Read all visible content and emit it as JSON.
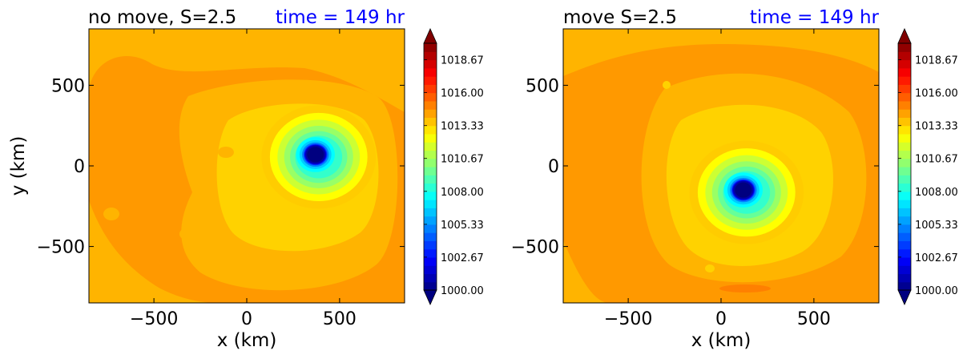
{
  "chart_data": [
    {
      "type": "heatmap",
      "title": "no move, S=2.5",
      "time_label": "time = 149 hr",
      "xlabel": "x (km)",
      "ylabel": "y (km)",
      "xlim": [
        -850,
        850
      ],
      "ylim": [
        -850,
        850
      ],
      "xticks": [
        -500,
        0,
        500
      ],
      "yticks": [
        -500,
        0,
        500
      ],
      "xtick_labels": [
        "−500",
        "0",
        "500"
      ],
      "ytick_labels": [
        "−500",
        "0",
        "500"
      ],
      "field": "pressure",
      "center": {
        "x": 370,
        "y": 70
      },
      "min_value": 1000.0,
      "ambient_value": 1016.0,
      "colorbar": {
        "min": 1000.0,
        "max": 1020.0,
        "ticks": [
          1000.0,
          1002.67,
          1005.33,
          1008.0,
          1010.67,
          1013.33,
          1016.0,
          1018.67
        ],
        "tick_labels": [
          "1000.00",
          "1002.67",
          "1005.33",
          "1008.00",
          "1010.67",
          "1013.33",
          "1016.00",
          "1018.67"
        ],
        "extend": "both"
      }
    },
    {
      "type": "heatmap",
      "title": "move S=2.5",
      "time_label": "time = 149 hr",
      "xlabel": "x (km)",
      "ylabel": "",
      "xlim": [
        -850,
        850
      ],
      "ylim": [
        -850,
        850
      ],
      "xticks": [
        -500,
        0,
        500
      ],
      "yticks": [
        -500,
        0,
        500
      ],
      "xtick_labels": [
        "−500",
        "0",
        "500"
      ],
      "ytick_labels": [
        "−500",
        "0",
        "500"
      ],
      "field": "pressure",
      "center": {
        "x": 120,
        "y": -150
      },
      "min_value": 1000.0,
      "ambient_value": 1016.0,
      "colorbar": {
        "min": 1000.0,
        "max": 1020.0,
        "ticks": [
          1000.0,
          1002.67,
          1005.33,
          1008.0,
          1010.67,
          1013.33,
          1016.0,
          1018.67
        ],
        "tick_labels": [
          "1000.00",
          "1002.67",
          "1005.33",
          "1008.00",
          "1010.67",
          "1013.33",
          "1016.00",
          "1018.67"
        ],
        "extend": "both"
      }
    }
  ],
  "colors": {
    "time_label": "#0000ff",
    "title": "#000000",
    "ambient": "#ff9900",
    "outer_ring": "#ffb400",
    "mid_ring": "#ffd200",
    "yellow_ring": "#f0f000",
    "core": "#000080"
  }
}
